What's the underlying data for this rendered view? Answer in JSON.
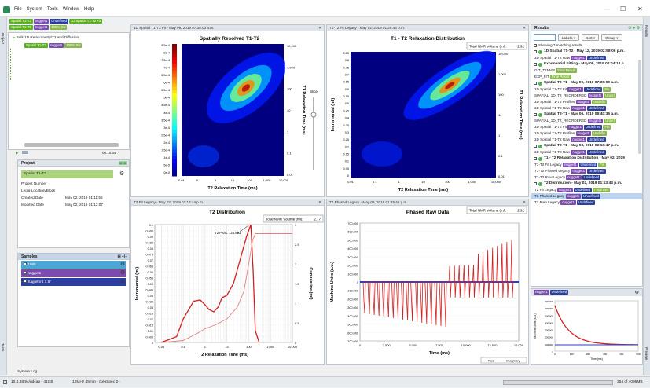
{
  "app": {
    "menu": [
      "File",
      "System",
      "Tools",
      "Window",
      "Help"
    ],
    "min": "—",
    "max": "☐",
    "close": "✕"
  },
  "vtabs": {
    "left_top": "Project",
    "left_bottom": "Tests",
    "right_top": "Results",
    "right_bottom": "Preview"
  },
  "toptags": [
    "Spatial T1-T2",
    "nugget1",
    "Undefined",
    "1D Spatial T1-T2 Fit",
    "Spatial T1-T2",
    "nugget1",
    "100% Sw"
  ],
  "tree": {
    "item1": "Bulk/1D Relaxometry/T2 and Diffusion",
    "item2_tags": [
      "Spatial T1-T2",
      "nugget1",
      "100% Sw"
    ]
  },
  "player": {
    "time": "00:10:34"
  },
  "project": {
    "title": "Project",
    "name": "Spatial T1-T2",
    "fields": [
      {
        "k": "Project Number",
        "v": ""
      },
      {
        "k": "Legal Location/Block",
        "v": ""
      },
      {
        "k": "Created Date",
        "v": "May 02, 2019 01:11:55"
      },
      {
        "k": "Modified Date",
        "v": "May 02, 2019 01:12:07"
      }
    ]
  },
  "samples": {
    "title": "Samples",
    "items": [
      {
        "name": "1085",
        "color": "#4aa6d6",
        "checked": false
      },
      {
        "name": "nugget1",
        "color": "#7b4bb0",
        "checked": true
      },
      {
        "name": "Eagleford 1.5\"",
        "color": "#2a3f9e",
        "checked": false
      }
    ]
  },
  "panels": {
    "p1": {
      "tab": "1D Spatial T1-T2 Fit - May 09, 2019 07:35:03 a.m.",
      "title": "Spatially Resolved T1-T2",
      "xlabel": "T2 Relaxation Time (ms)",
      "ylabel": "T1 Relaxation Time (ms)",
      "slice": "Slice",
      "xticks": [
        "0.01",
        "0.1",
        "1",
        "10",
        "100",
        "1,000",
        "10,000"
      ],
      "yticks": [
        "10,000",
        "1,000",
        "100",
        "10",
        "1",
        "0.1",
        "0.01"
      ],
      "cbar": [
        "8.5e-4",
        "8e-4",
        "7.5e-4",
        "7e-4",
        "6.5e-4",
        "6e-4",
        "5.5e-4",
        "5e-4",
        "4.5e-4",
        "4e-4",
        "3.5e-4",
        "3e-4",
        "2.5e-4",
        "2e-4",
        "1.5e-4",
        "1e-4",
        "5e-5",
        "0e-0"
      ]
    },
    "p2": {
      "tab": "T1-T2 Fit Legacy - May 02, 2019 01:25:46 p.m.",
      "title": "T1 - T2 Relaxation Distribution",
      "nmr_label": "Total NMR Volume (ml):",
      "nmr": "2.92",
      "xlabel": "T2 Relaxation Time (ms)",
      "ylabel_l": "Incremental (ml)",
      "ylabel_r": "T1 Relaxation Time (ms)",
      "xticks": [
        "0.01",
        "0.1",
        "1",
        "10",
        "100",
        "1,000",
        "10,000"
      ],
      "lticks": [
        "0.85",
        "0.8",
        "0.75",
        "0.7",
        "0.65",
        "0.6",
        "0.55",
        "0.5",
        "0.45",
        "0.4",
        "0.35",
        "0.3",
        "0.25",
        "0.2",
        "0.15",
        "0.1",
        "0.05",
        "0"
      ],
      "rticks": [
        "10,000",
        "1,000",
        "100",
        "10",
        "1",
        "0.1",
        "0.01"
      ]
    },
    "p3": {
      "tab": "T2 Fit Legacy - May 02, 2019 01:13:44 p.m.",
      "title": "T2 Distribution",
      "nmr_label": "Total NMR Volume (ml):",
      "nmr": "2.77",
      "peak": "T2 Peak: 125.863",
      "xlabel": "T2 Relaxation Time (ms)",
      "ylabel_l": "Incremental (ml)",
      "ylabel_r": "Cumulative (ml)",
      "xticks": [
        "0.01",
        "0.1",
        "1",
        "10",
        "100",
        "1,000",
        "10,000"
      ],
      "lticks": [
        "0.1",
        "0.095",
        "0.09",
        "0.085",
        "0.08",
        "0.075",
        "0.07",
        "0.065",
        "0.06",
        "0.055",
        "0.05",
        "0.045",
        "0.04",
        "0.035",
        "0.03",
        "0.025",
        "0.02",
        "0.015",
        "0.01",
        "0.005",
        "0"
      ],
      "rticks": [
        "3",
        "2.5",
        "2",
        "1.5",
        "1",
        "0.5",
        "0"
      ]
    },
    "p4": {
      "tab": "T2 Phased Legacy - May 02, 2019 01:25:46 p.m.",
      "title": "Phased Raw Data",
      "nmr_label": "Total NMR Volume (ml):",
      "nmr": "2.92",
      "xlabel": "Time (ms)",
      "ylabel": "Machine Units (a.u.)",
      "xticks": [
        "0",
        "2,500",
        "5,000",
        "7,500",
        "10,000",
        "12,500",
        "15,000"
      ],
      "yticks": [
        "700,000",
        "600,000",
        "500,000",
        "400,000",
        "300,000",
        "200,000",
        "100,000",
        "0",
        "-100,000",
        "-200,000",
        "-300,000",
        "-400,000",
        "-500,000",
        "-600,000",
        "-700,000"
      ],
      "legend": [
        "Real",
        "Imaginary"
      ]
    }
  },
  "results": {
    "title": "Results",
    "labels_btn": "Labels ▾",
    "sort_btn": "Sort ▾",
    "group_btn": "Group ▾",
    "showing": "Showing 7 matching results.",
    "groups": [
      {
        "head": "1D Spatial T1-T2 - May 12, 2019 02:58:06 p.m.",
        "items": [
          {
            "t": "1D Spatial T1-T2 Raw",
            "tags": [
              "nugget1",
              "Undefined"
            ]
          }
        ]
      },
      {
        "head": "Exponential Fitting - May 09, 2019 02:04:14 p.",
        "items": [
          {
            "t": "GIT_T2NMR",
            "tags": [
              "Final Result"
            ]
          },
          {
            "t": "EXP_FIT",
            "tags": [
              "Final Result"
            ]
          }
        ]
      },
      {
        "head": "Spatial T2-T1 - May 09, 2019 07:35:00 a.m.",
        "items": [
          {
            "t": "1D Spatial T1-T2 Fit",
            "tags": [
              "nugget1",
              "Undefined",
              "Fin"
            ]
          },
          {
            "t": "SPATIAL_1D_T2_REORDERED",
            "tags": [
              "nugget1",
              "Undef"
            ]
          },
          {
            "t": "1D Spatial T1-T2 Profiles",
            "tags": [
              "nugget1",
              "Undefin"
            ]
          },
          {
            "t": "1D Spatial T1-T2 Raw",
            "tags": [
              "nugget1",
              "Undefined"
            ]
          }
        ]
      },
      {
        "head": "Spatial T2-T1 - May 06, 2019 08:40:36 a.m.",
        "items": [
          {
            "t": "SPATIAL_1D_T2_REORDERED",
            "tags": [
              "nugget1",
              "Undef"
            ]
          },
          {
            "t": "1D Spatial T1-T2 Fit",
            "tags": [
              "nugget1",
              "Undefined",
              "Fin"
            ]
          },
          {
            "t": "1D Spatial T1-T2 Profiles",
            "tags": [
              "nugget1",
              "Undefin"
            ]
          },
          {
            "t": "1D Spatial T1-T2 Raw",
            "tags": [
              "nugget1",
              "Undefined"
            ]
          }
        ]
      },
      {
        "head": "Spatial T2-T1 - May 03, 2019 02:16:47 p.m.",
        "items": [
          {
            "t": "1D Spatial T1-T2 Raw",
            "tags": [
              "nugget1",
              "Undefined"
            ]
          }
        ]
      },
      {
        "head": "T1 - T2 Relaxation Distribution - May 02, 2019",
        "items": [
          {
            "t": "T1-T2 Fit Legacy",
            "tags": [
              "nugget1",
              "Undefined",
              "Fin"
            ]
          },
          {
            "t": "T1-T2 Phased Legacy",
            "tags": [
              "nugget1",
              "Undefined"
            ]
          },
          {
            "t": "T1-T2 Raw Legacy",
            "tags": [
              "nugget1",
              "Undefined"
            ]
          }
        ]
      },
      {
        "head": "T2 Distribution - May 02, 2019 01:13:44 p.m.",
        "items": [
          {
            "t": "T2 Fit Legacy",
            "tags": [
              "nugget1",
              "Undefined",
              "Final Res"
            ]
          },
          {
            "t": "T2 Phased Legacy",
            "tags": [
              "nugget1",
              "Undefined"
            ]
          },
          {
            "t": "T2 Raw Legacy",
            "tags": [
              "nugget1",
              "Undefined"
            ]
          }
        ]
      }
    ]
  },
  "preview": {
    "tags": [
      "nugget1",
      "Undefined"
    ],
    "ylabel": "Machine Units (a.u.)",
    "xlabel": "Time (ms)",
    "yticks": [
      "700,000",
      "600,000",
      "500,000",
      "400,000",
      "300,000",
      "200,000",
      "100,000",
      "0"
    ],
    "xticks": [
      "0",
      "100",
      "200",
      "300",
      "400",
      "500"
    ]
  },
  "status": {
    "log": "System Log",
    "path": "10.4.48.94/gdcap - 41GB",
    "info": "12MHz 45mm - GeoSpec 2+",
    "mem": "354 of 4096MB"
  },
  "chart_data": [
    {
      "type": "heatmap",
      "title": "Spatially Resolved T1-T2",
      "xlabel": "T2 Relaxation Time (ms)",
      "ylabel": "T1 Relaxation Time (ms)",
      "xlim": [
        0.01,
        10000
      ],
      "ylim": [
        0.01,
        10000
      ],
      "log_x": true,
      "log_y": true,
      "peak": {
        "x": 60,
        "y": 100
      }
    },
    {
      "type": "heatmap",
      "title": "T1 - T2 Relaxation Distribution",
      "xlabel": "T2 Relaxation Time (ms)",
      "ylabel": "T1 Relaxation Time (ms)",
      "xlim": [
        0.01,
        10000
      ],
      "ylim": [
        0.01,
        10000
      ],
      "log_x": true,
      "log_y": true,
      "peak": {
        "x": 125,
        "y": 250
      }
    },
    {
      "type": "line",
      "title": "T2 Distribution",
      "xlabel": "T2 Relaxation Time (ms)",
      "xlim": [
        0.005,
        10000
      ],
      "log_x": true,
      "series": [
        {
          "name": "Incremental",
          "x": [
            0.01,
            0.05,
            0.1,
            0.3,
            0.6,
            1,
            1.5,
            2.5,
            4,
            6,
            10,
            20,
            40,
            80,
            125,
            160,
            200,
            300
          ],
          "y": [
            0.0,
            0.005,
            0.02,
            0.035,
            0.036,
            0.032,
            0.028,
            0.026,
            0.03,
            0.038,
            0.04,
            0.05,
            0.07,
            0.09,
            0.1,
            0.06,
            0.01,
            0.0
          ]
        },
        {
          "name": "Cumulative",
          "x": [
            0.01,
            0.1,
            0.5,
            1,
            3,
            10,
            30,
            60,
            100,
            150,
            200,
            500,
            10000
          ],
          "y": [
            0,
            0.05,
            0.25,
            0.35,
            0.45,
            0.6,
            0.9,
            1.3,
            2.0,
            2.6,
            2.77,
            2.77,
            2.77
          ]
        }
      ]
    },
    {
      "type": "line",
      "title": "Phased Raw Data",
      "xlabel": "Time (ms)",
      "ylabel": "Machine Units (a.u.)",
      "xlim": [
        0,
        15000
      ],
      "ylim": [
        -700000,
        700000
      ]
    }
  ]
}
